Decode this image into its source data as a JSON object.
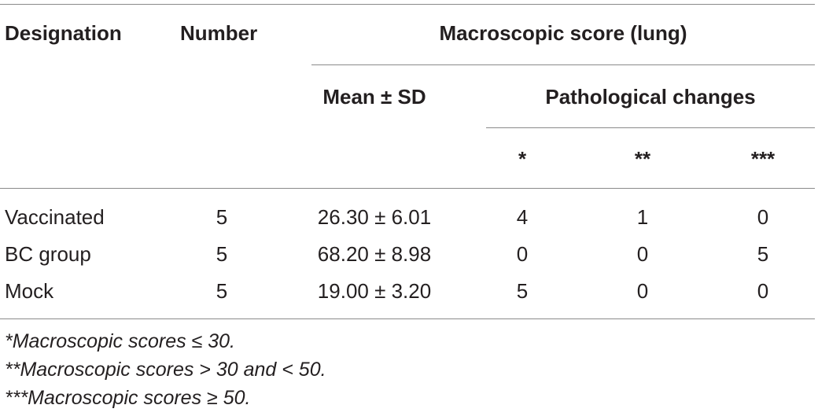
{
  "headers": {
    "designation": "Designation",
    "number": "Number",
    "macroscopic": "Macroscopic score (lung)",
    "mean_sd": "Mean ± SD",
    "pathological": "Pathological changes",
    "star1": "*",
    "star2": "**",
    "star3": "***"
  },
  "rows": [
    {
      "designation": "Vaccinated",
      "number": "5",
      "mean_sd": "26.30 ± 6.01",
      "c1": "4",
      "c2": "1",
      "c3": "0"
    },
    {
      "designation": "BC group",
      "number": "5",
      "mean_sd": "68.20 ± 8.98",
      "c1": "0",
      "c2": "0",
      "c3": "5"
    },
    {
      "designation": "Mock",
      "number": "5",
      "mean_sd": "19.00 ± 3.20",
      "c1": "5",
      "c2": "0",
      "c3": "0"
    }
  ],
  "footnotes": [
    "*Macroscopic scores ≤ 30.",
    "**Macroscopic scores > 30 and < 50.",
    "***Macroscopic scores ≥ 50."
  ]
}
